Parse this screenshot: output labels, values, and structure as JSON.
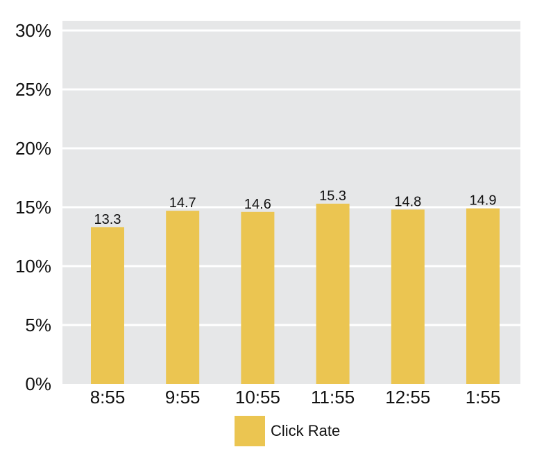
{
  "chart_data": {
    "type": "bar",
    "categories": [
      "8:55",
      "9:55",
      "10:55",
      "11:55",
      "12:55",
      "1:55"
    ],
    "series": [
      {
        "name": "Click Rate",
        "values": [
          13.3,
          14.7,
          14.6,
          15.3,
          14.8,
          14.9
        ],
        "data_labels": [
          "13.3",
          "14.7",
          "14.6",
          "15.3",
          "14.8",
          "14.9"
        ],
        "color": "#EBC551"
      }
    ],
    "title": "",
    "xlabel": "",
    "ylabel": "",
    "ylim": [
      0,
      30
    ],
    "yticks": [
      0,
      5,
      10,
      15,
      20,
      25,
      30
    ],
    "ytick_labels": [
      "0%",
      "5%",
      "10%",
      "15%",
      "20%",
      "25%",
      "30%"
    ],
    "grid": true,
    "legend": "bottom",
    "plot_background": "#E6E7E8",
    "grid_color": "#FFFFFF"
  }
}
